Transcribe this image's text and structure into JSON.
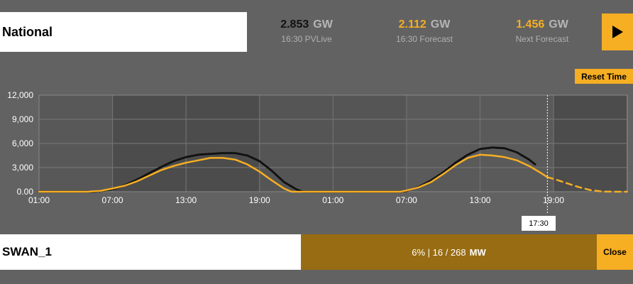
{
  "header": {
    "region": "National",
    "stats": [
      {
        "value": "2.853",
        "unit": "GW",
        "label": "16:30 PVLive",
        "color": "#111111"
      },
      {
        "value": "2.112",
        "unit": "GW",
        "label": "16:30 Forecast",
        "color": "#f6ae22"
      },
      {
        "value": "1.456",
        "unit": "GW",
        "label": "Next Forecast",
        "color": "#f6ae22"
      }
    ],
    "play_icon": "play-icon"
  },
  "controls": {
    "reset_label": "Reset Time"
  },
  "chart_data": {
    "type": "line",
    "y_ticks": [
      "12,000",
      "9,000",
      "6,000",
      "3,000",
      "0.00"
    ],
    "x_ticks": [
      "01:00",
      "07:00",
      "13:00",
      "19:00",
      "01:00",
      "07:00",
      "13:00",
      "19:00"
    ],
    "ylim": [
      0,
      12000
    ],
    "x_unit": "hours since first 00:00",
    "selected_time_label": "17:30",
    "selected_time_x": 41.5,
    "colors": {
      "actual": "#111111",
      "forecast": "#f6ae22"
    },
    "series": [
      {
        "name": "PVLive",
        "style": "dotted-black",
        "points": [
          [
            0,
            0
          ],
          [
            4.5,
            0
          ],
          [
            5,
            80
          ],
          [
            6,
            300
          ],
          [
            7,
            800
          ],
          [
            8,
            1500
          ],
          [
            9,
            2300
          ],
          [
            10,
            3100
          ],
          [
            11,
            3800
          ],
          [
            12,
            4300
          ],
          [
            13,
            4600
          ],
          [
            14,
            4700
          ],
          [
            15,
            4800
          ],
          [
            16,
            4800
          ],
          [
            17,
            4500
          ],
          [
            18,
            3800
          ],
          [
            19,
            2600
          ],
          [
            20,
            1200
          ],
          [
            21,
            300
          ],
          [
            21.5,
            0
          ],
          [
            29.5,
            0
          ],
          [
            30,
            100
          ],
          [
            31,
            600
          ],
          [
            32,
            1400
          ],
          [
            33,
            2400
          ],
          [
            34,
            3600
          ],
          [
            35,
            4600
          ],
          [
            36,
            5300
          ],
          [
            37,
            5500
          ],
          [
            38,
            5400
          ],
          [
            39,
            4900
          ],
          [
            40,
            4000
          ],
          [
            40.5,
            3400
          ]
        ]
      },
      {
        "name": "Forecast",
        "style": "solid-yellow",
        "points": [
          [
            0,
            0
          ],
          [
            4,
            0
          ],
          [
            5,
            100
          ],
          [
            6,
            400
          ],
          [
            7,
            750
          ],
          [
            8,
            1300
          ],
          [
            9,
            2000
          ],
          [
            10,
            2700
          ],
          [
            11,
            3200
          ],
          [
            12,
            3600
          ],
          [
            13,
            3900
          ],
          [
            14,
            4200
          ],
          [
            15,
            4200
          ],
          [
            16,
            4000
          ],
          [
            17,
            3400
          ],
          [
            18,
            2500
          ],
          [
            19,
            1400
          ],
          [
            20,
            400
          ],
          [
            20.6,
            0
          ],
          [
            29.5,
            0
          ],
          [
            30,
            150
          ],
          [
            31,
            550
          ],
          [
            32,
            1200
          ],
          [
            33,
            2200
          ],
          [
            34,
            3300
          ],
          [
            35,
            4200
          ],
          [
            36,
            4600
          ],
          [
            37,
            4500
          ],
          [
            38,
            4300
          ],
          [
            39,
            3900
          ],
          [
            40,
            3200
          ],
          [
            41,
            2300
          ],
          [
            41.5,
            1800
          ]
        ]
      },
      {
        "name": "Next Forecast",
        "style": "dashed-yellow",
        "points": [
          [
            41.5,
            1800
          ],
          [
            42,
            1600
          ],
          [
            43,
            1100
          ],
          [
            44,
            600
          ],
          [
            45,
            200
          ],
          [
            46,
            20
          ],
          [
            47,
            0
          ],
          [
            48,
            0
          ]
        ]
      }
    ]
  },
  "footer": {
    "site": "SWAN_1",
    "capacity_text": "6% | 16 / 268",
    "capacity_unit": "MW",
    "close_label": "Close"
  }
}
